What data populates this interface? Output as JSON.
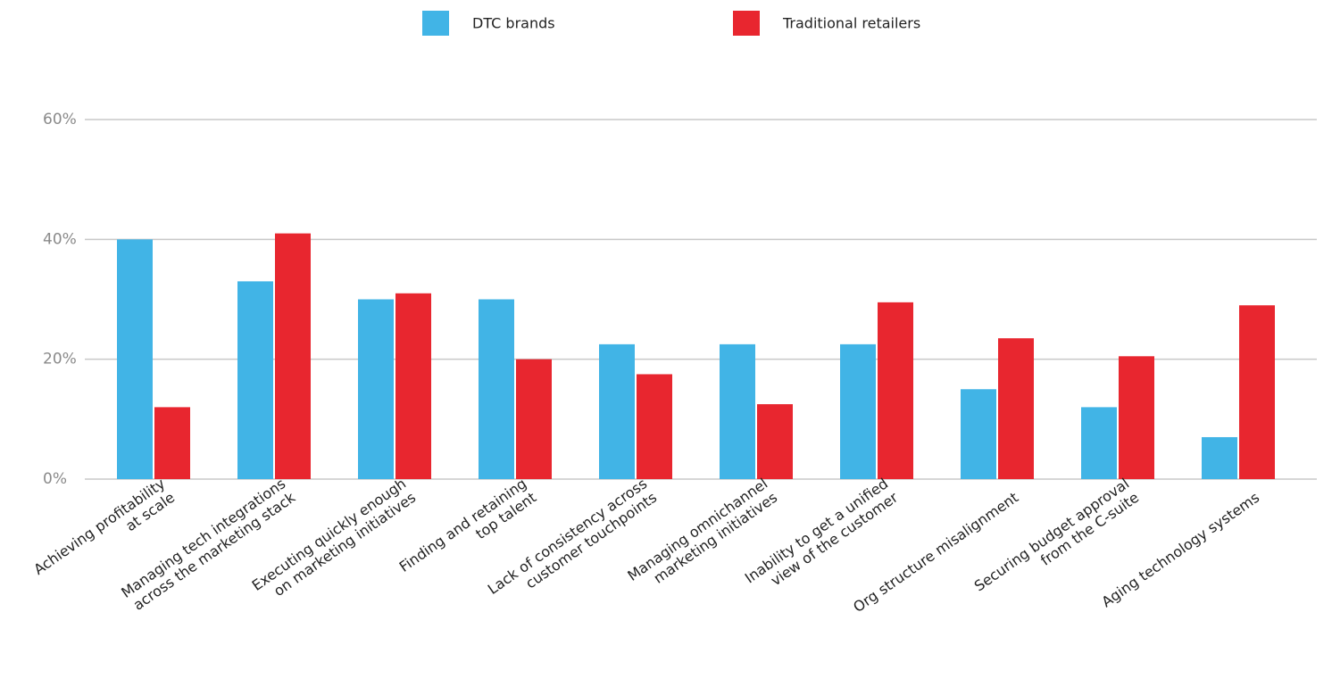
{
  "chart_data": {
    "type": "bar",
    "categories": [
      [
        "Achieving profitability",
        "at scale"
      ],
      [
        "Managing tech integrations",
        "across the marketing stack"
      ],
      [
        "Executing quickly enough",
        "on marketing initiatives"
      ],
      [
        "Finding and retaining",
        "top talent"
      ],
      [
        "Lack of consistency across",
        "customer touchpoints"
      ],
      [
        "Managing omnichannel",
        "marketing initiatives"
      ],
      [
        "Inability to get a unified",
        "view of the customer"
      ],
      [
        "Org structure misalignment"
      ],
      [
        "Securing budget approval",
        "from the C-suite"
      ],
      [
        "Aging technology systems"
      ]
    ],
    "series": [
      {
        "name": "DTC brands",
        "color": "#41b4e6",
        "values": [
          40,
          33,
          30,
          30,
          22.5,
          22.5,
          22.5,
          15,
          12,
          7
        ]
      },
      {
        "name": "Traditional retailers",
        "color": "#e8262f",
        "values": [
          12,
          41,
          31,
          20,
          17.5,
          12.5,
          29.5,
          23.5,
          20.5,
          29
        ]
      }
    ],
    "ylim": [
      0,
      60
    ],
    "yticks": [
      {
        "value": 0,
        "label": "0%"
      },
      {
        "value": 20,
        "label": "20%"
      },
      {
        "value": 40,
        "label": "40%"
      },
      {
        "value": 60,
        "label": "60%"
      }
    ],
    "grid": true
  }
}
